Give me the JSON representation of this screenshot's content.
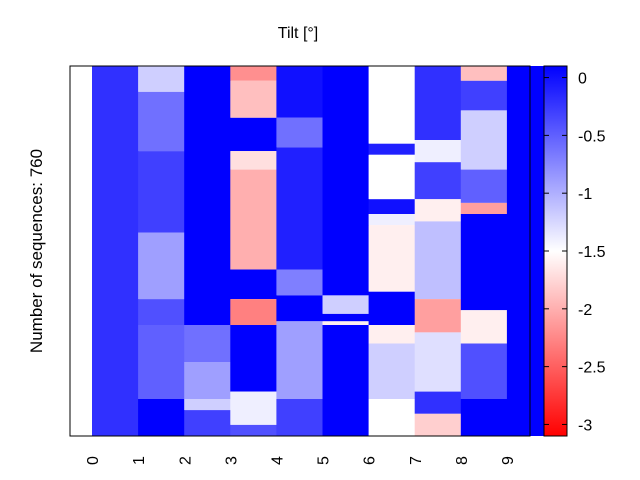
{
  "chart_data": {
    "type": "heatmap",
    "title": "Tilt [°]",
    "ylabel": "Number of sequences: 760",
    "xlabel": "",
    "x_ticks": [
      "0",
      "1",
      "2",
      "3",
      "4",
      "5",
      "6",
      "7",
      "8",
      "9"
    ],
    "n_rows": 760,
    "colorbar": {
      "min": -3.1,
      "max": 0.1,
      "ticks": [
        0,
        -0.5,
        -1,
        -1.5,
        -2,
        -2.5,
        -3
      ],
      "tick_labels": [
        "0",
        "-0.5",
        "-1",
        "-1.5",
        "-2",
        "-2.5",
        "-3"
      ],
      "colors": {
        "low": "#ff0000",
        "mid": "#ffffff",
        "high": "#0000ff"
      }
    },
    "columns": [
      {
        "x": "0",
        "segments": [
          [
            0,
            1,
            -0.2
          ],
          [
            1,
            1,
            -1.5
          ]
        ]
      },
      {
        "x": "1",
        "segments": [
          [
            0,
            0.07,
            -1.2
          ],
          [
            0.07,
            0.23,
            -0.6
          ],
          [
            0.23,
            0.45,
            -0.3
          ],
          [
            0.45,
            0.63,
            -0.9
          ],
          [
            0.63,
            0.7,
            -0.4
          ],
          [
            0.7,
            0.9,
            -0.5
          ],
          [
            0.9,
            1,
            0.1
          ]
        ]
      },
      {
        "x": "2",
        "segments": [
          [
            0,
            0.7,
            0.1
          ],
          [
            0.7,
            0.8,
            -0.6
          ],
          [
            0.8,
            0.9,
            -0.9
          ],
          [
            0.9,
            0.93,
            -1.2
          ],
          [
            0.93,
            1,
            -0.3
          ]
        ]
      },
      {
        "x": "3",
        "segments": [
          [
            0,
            0.04,
            -2.2
          ],
          [
            0.04,
            0.14,
            -1.9
          ],
          [
            0.14,
            0.23,
            0.1
          ],
          [
            0.23,
            0.28,
            -1.7
          ],
          [
            0.28,
            0.55,
            -2.0
          ],
          [
            0.55,
            0.63,
            0.1
          ],
          [
            0.63,
            0.7,
            -2.3
          ],
          [
            0.7,
            0.88,
            0.1
          ],
          [
            0.88,
            0.97,
            -1.4
          ],
          [
            0.97,
            1,
            -0.4
          ]
        ]
      },
      {
        "x": "4",
        "segments": [
          [
            0,
            0.14,
            0.0
          ],
          [
            0.14,
            0.22,
            -0.6
          ],
          [
            0.22,
            0.55,
            -0.1
          ],
          [
            0.55,
            0.62,
            -0.7
          ],
          [
            0.62,
            0.69,
            0.1
          ],
          [
            0.69,
            0.9,
            -0.9
          ],
          [
            0.9,
            1,
            -0.3
          ]
        ]
      },
      {
        "x": "5",
        "segments": [
          [
            0,
            0.62,
            0.1
          ],
          [
            0.62,
            0.67,
            -1.2
          ],
          [
            0.67,
            0.69,
            0.1
          ],
          [
            0.69,
            0.7,
            -1.6
          ],
          [
            0.7,
            1,
            0.1
          ]
        ]
      },
      {
        "x": "6",
        "segments": [
          [
            0,
            0.21,
            -1.5
          ],
          [
            0.21,
            0.24,
            -0.1
          ],
          [
            0.24,
            0.36,
            -1.5
          ],
          [
            0.36,
            0.4,
            0.0
          ],
          [
            0.4,
            0.43,
            -1.4
          ],
          [
            0.43,
            0.61,
            -1.6
          ],
          [
            0.61,
            0.7,
            0.1
          ],
          [
            0.7,
            0.75,
            -1.6
          ],
          [
            0.75,
            0.9,
            -1.2
          ],
          [
            0.9,
            1,
            -1.5
          ]
        ]
      },
      {
        "x": "7",
        "segments": [
          [
            0,
            0.2,
            -0.2
          ],
          [
            0.2,
            0.26,
            -1.4
          ],
          [
            0.26,
            0.36,
            -0.3
          ],
          [
            0.36,
            0.42,
            -1.6
          ],
          [
            0.42,
            0.63,
            -1.1
          ],
          [
            0.63,
            0.72,
            -2.1
          ],
          [
            0.72,
            0.88,
            -1.3
          ],
          [
            0.88,
            0.94,
            -0.2
          ],
          [
            0.94,
            1,
            -1.8
          ]
        ]
      },
      {
        "x": "8",
        "segments": [
          [
            0,
            0.04,
            -1.9
          ],
          [
            0.04,
            0.12,
            -0.3
          ],
          [
            0.12,
            0.28,
            -1.2
          ],
          [
            0.28,
            0.37,
            -0.5
          ],
          [
            0.37,
            0.4,
            -2.1
          ],
          [
            0.4,
            0.66,
            0.1
          ],
          [
            0.66,
            0.75,
            -1.6
          ],
          [
            0.75,
            0.9,
            -0.4
          ],
          [
            0.9,
            1,
            0.1
          ]
        ]
      },
      {
        "x": "9",
        "segments": [
          [
            0,
            1,
            0.1
          ]
        ]
      }
    ]
  }
}
